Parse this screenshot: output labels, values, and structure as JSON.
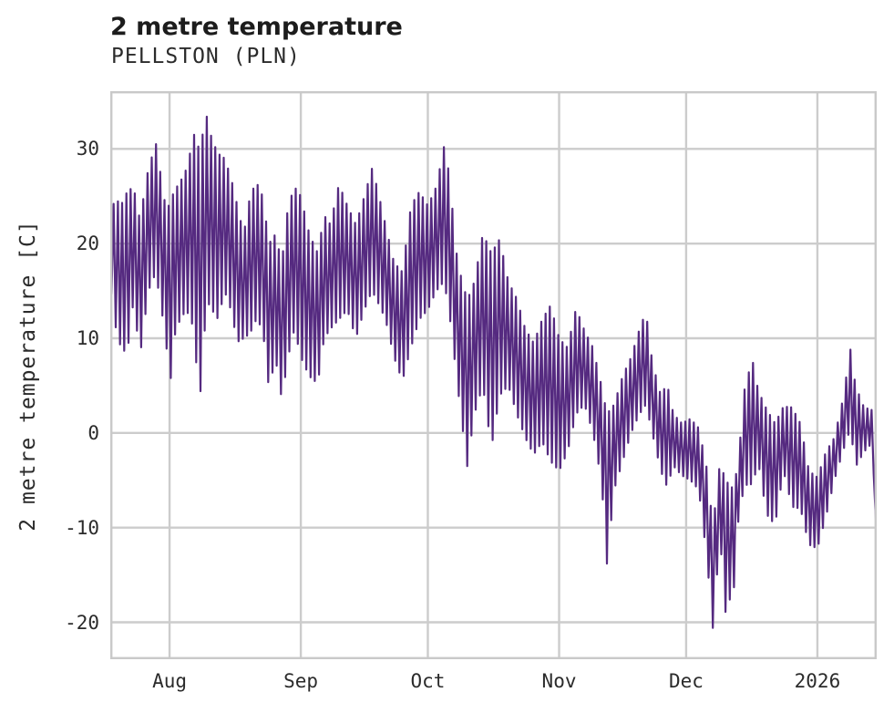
{
  "figure": {
    "title": "2 metre temperature",
    "subtitle": "PELLSTON (PLN)",
    "ylabel": "2 metre temperature [C]"
  },
  "chart_data": {
    "type": "line",
    "title": "2 metre temperature",
    "subtitle": "PELLSTON (PLN)",
    "ylabel": "2 metre temperature [C]",
    "xlabel": "",
    "legend": "none",
    "grid": true,
    "grid_color": "#cccccc",
    "spine_color": "#c9c9c9",
    "line_color": "#552a80",
    "line_width": 2.2,
    "x_axis": {
      "unit": "days (0 = Aug 1)",
      "range": [
        -14,
        167
      ],
      "ticks": [
        {
          "day": 0,
          "label": "Aug"
        },
        {
          "day": 31,
          "label": "Sep"
        },
        {
          "day": 61,
          "label": "Oct"
        },
        {
          "day": 92,
          "label": "Nov"
        },
        {
          "day": 122,
          "label": "Dec"
        },
        {
          "day": 153,
          "label": "2026"
        }
      ]
    },
    "y_axis": {
      "range": [
        -23.9,
        36.1
      ],
      "ticks": [
        30,
        20,
        10,
        0,
        -10,
        -20
      ]
    },
    "series_name": "2 metre temperature",
    "sampling_note": "dense hourly trace read off as daily min/max envelope [day, min C, max C]",
    "daily_min_max_envelope": [
      [
        -14,
        16,
        21
      ],
      [
        -13,
        11.7,
        25
      ],
      [
        -11.5,
        9,
        24
      ],
      [
        -10,
        8.4,
        25.5
      ],
      [
        -8.5,
        14,
        26
      ],
      [
        -7,
        8,
        22.5
      ],
      [
        -5,
        15,
        28
      ],
      [
        -3.2,
        17,
        30.5
      ],
      [
        -2,
        13,
        27
      ],
      [
        -1,
        11,
        24
      ],
      [
        0,
        4,
        24
      ],
      [
        1,
        10,
        25.5
      ],
      [
        2.5,
        12,
        26.5
      ],
      [
        4,
        13,
        27.9
      ],
      [
        5.8,
        11,
        31.5
      ],
      [
        7,
        2.5,
        30
      ],
      [
        8.8,
        14,
        33.4
      ],
      [
        10,
        13,
        31
      ],
      [
        11.5,
        12,
        29.5
      ],
      [
        13,
        15,
        29
      ],
      [
        14.5,
        13,
        27
      ],
      [
        16,
        9.6,
        24
      ],
      [
        17.5,
        10,
        21
      ],
      [
        19,
        10.5,
        25
      ],
      [
        20.5,
        12,
        26.5
      ],
      [
        22,
        11,
        25
      ],
      [
        23.5,
        4.5,
        20
      ],
      [
        25,
        8,
        21
      ],
      [
        26.5,
        3.5,
        18
      ],
      [
        28,
        8,
        24
      ],
      [
        29.5,
        11,
        26
      ],
      [
        31,
        8,
        25
      ],
      [
        33,
        6,
        21
      ],
      [
        35,
        5.2,
        19
      ],
      [
        36.5,
        10,
        23
      ],
      [
        38,
        11,
        22
      ],
      [
        40,
        12,
        26.3
      ],
      [
        42,
        13,
        24
      ],
      [
        44,
        10,
        22
      ],
      [
        46,
        13,
        25
      ],
      [
        47.8,
        15,
        27.9
      ],
      [
        49,
        14,
        26
      ],
      [
        51,
        12,
        22
      ],
      [
        53,
        8,
        18
      ],
      [
        55,
        5.5,
        17
      ],
      [
        57,
        9,
        24
      ],
      [
        59,
        12,
        25.5
      ],
      [
        61,
        13,
        24
      ],
      [
        63,
        15,
        26
      ],
      [
        64.8,
        16,
        30.2
      ],
      [
        66,
        13,
        27.5
      ],
      [
        68,
        5,
        18
      ],
      [
        70.3,
        -3.5,
        14
      ],
      [
        72,
        2,
        16
      ],
      [
        74,
        5,
        21.1
      ],
      [
        76,
        -1.6,
        19
      ],
      [
        78,
        4,
        20.5
      ],
      [
        80,
        5,
        16
      ],
      [
        82,
        2,
        14.2
      ],
      [
        84,
        -0.5,
        11
      ],
      [
        86,
        -2.3,
        9.5
      ],
      [
        88,
        -0.9,
        12
      ],
      [
        90,
        -3,
        13.5
      ],
      [
        92,
        -4,
        10
      ],
      [
        94,
        -2,
        9
      ],
      [
        96,
        2,
        13.2
      ],
      [
        98,
        3,
        10.8
      ],
      [
        100,
        0,
        9
      ],
      [
        102,
        -5,
        5
      ],
      [
        103.3,
        -13.8,
        2
      ],
      [
        105,
        -6,
        3
      ],
      [
        107,
        -3,
        6
      ],
      [
        109,
        0,
        8
      ],
      [
        111,
        2,
        11
      ],
      [
        112.5,
        3,
        12.8
      ],
      [
        114,
        0,
        7.5
      ],
      [
        116,
        -4,
        4
      ],
      [
        117.5,
        -5.7,
        5.2
      ],
      [
        119,
        -3.5,
        2
      ],
      [
        121,
        -4.5,
        1
      ],
      [
        123,
        -5,
        1.5
      ],
      [
        125,
        -6,
        0.5
      ],
      [
        127,
        -13.7,
        -4
      ],
      [
        128.3,
        -20.6,
        -10
      ],
      [
        130,
        -11,
        -3
      ],
      [
        131.3,
        -18.9,
        -5
      ],
      [
        133.3,
        -16.3,
        -6
      ],
      [
        134.5,
        -8,
        -2
      ],
      [
        136,
        -5.5,
        5.6
      ],
      [
        137.8,
        -5.4,
        7.4
      ],
      [
        139,
        -3,
        4.5
      ],
      [
        141,
        -8.6,
        2.5
      ],
      [
        143,
        -9.7,
        1
      ],
      [
        145,
        -4,
        2.8
      ],
      [
        147,
        -7.8,
        2.7
      ],
      [
        149,
        -8,
        1
      ],
      [
        151,
        -11.8,
        -4
      ],
      [
        153,
        -12.2,
        -4.7
      ],
      [
        155,
        -8.9,
        -2
      ],
      [
        157,
        -5,
        -0.5
      ],
      [
        159,
        -2,
        3.5
      ],
      [
        160.8,
        0.5,
        8.8
      ],
      [
        162,
        -3.6,
        5
      ],
      [
        164,
        -2,
        2.7
      ],
      [
        166,
        -1,
        2.4
      ],
      [
        167,
        -12.1,
        -12.1
      ]
    ]
  }
}
